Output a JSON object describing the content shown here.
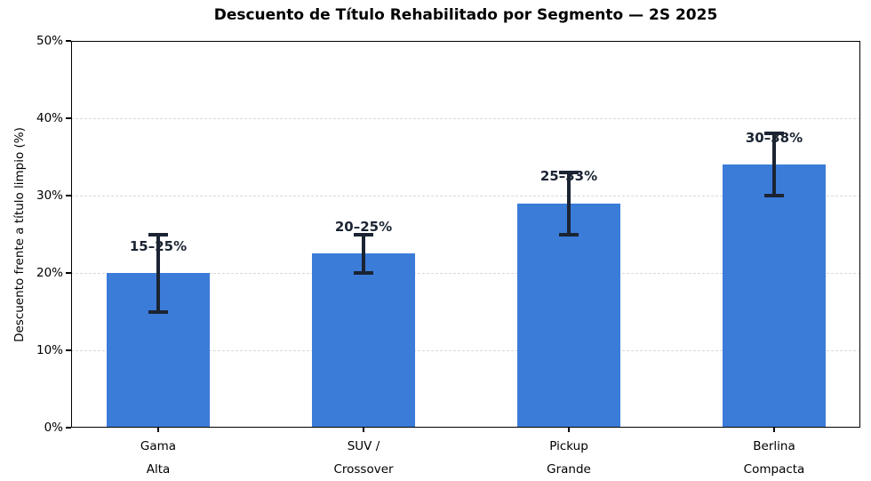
{
  "chart_data": {
    "type": "bar",
    "title": "Descuento de Título Rehabilitado por Segmento — 2S 2025",
    "ylabel": "Descuento frente a título limpio (%)",
    "xlabel": "",
    "ylim": [
      0,
      50
    ],
    "yticks": [
      {
        "value": 0,
        "label": "0%"
      },
      {
        "value": 10,
        "label": "10%"
      },
      {
        "value": 20,
        "label": "20%"
      },
      {
        "value": 30,
        "label": "30%"
      },
      {
        "value": 40,
        "label": "40%"
      },
      {
        "value": 50,
        "label": "50%"
      }
    ],
    "grid": {
      "horizontal": true,
      "style": "dashed",
      "at": [
        10,
        20,
        30,
        40
      ]
    },
    "categories": [
      "Gama\nAlta",
      "SUV /\nCrossover",
      "Pickup\nGrande",
      "Berlina\nCompacta"
    ],
    "values": [
      20,
      22.5,
      29,
      34
    ],
    "error_low": [
      15,
      20,
      25,
      30
    ],
    "error_high": [
      25,
      25,
      33,
      38
    ],
    "annotations": [
      "15–25%",
      "20–25%",
      "25–33%",
      "30–38%"
    ],
    "colors": {
      "bar": "#3b7cd9",
      "error_bar": "#1b2433",
      "annotation_text": "#1b2433",
      "grid": "#d9d9d9",
      "axis": "#000000"
    }
  }
}
